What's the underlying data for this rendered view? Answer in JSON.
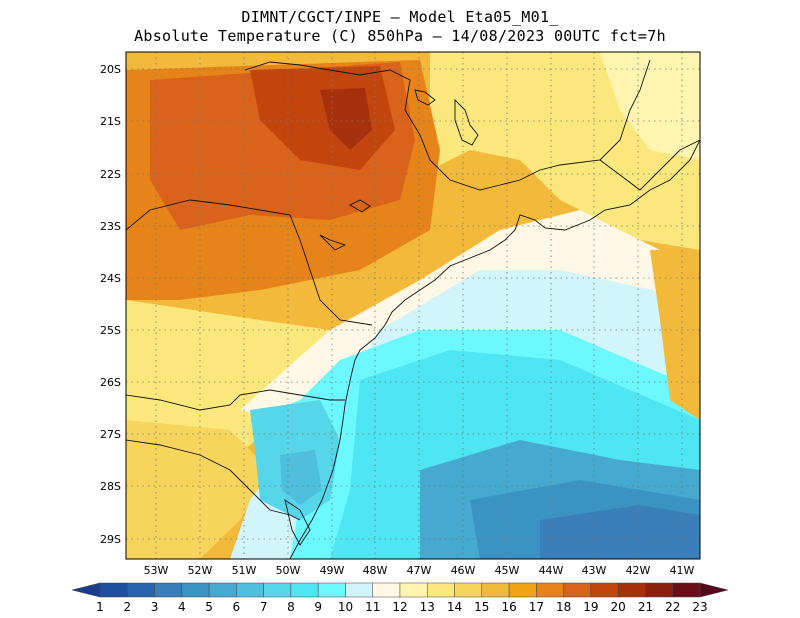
{
  "title": {
    "line1": "DIMNT/CGCT/INPE –  Model Eta05_M01_",
    "line2": "Absolute Temperature (C) 850hPa –  14/08/2023 00UTC fct=7h"
  },
  "map": {
    "lat_labels": [
      "20S",
      "21S",
      "22S",
      "23S",
      "24S",
      "25S",
      "26S",
      "27S",
      "28S",
      "29S"
    ],
    "lon_labels": [
      "53W",
      "52W",
      "51W",
      "50W",
      "49W",
      "48W",
      "47W",
      "46W",
      "45W",
      "44W",
      "43W",
      "42W",
      "41W"
    ],
    "lat_range": [
      -29.4,
      -19.7
    ],
    "lon_range": [
      -53.9,
      -40.6
    ]
  },
  "colorbar": {
    "labels": [
      "1",
      "2",
      "3",
      "4",
      "5",
      "6",
      "7",
      "8",
      "9",
      "10",
      "11",
      "12",
      "13",
      "14",
      "15",
      "16",
      "17",
      "18",
      "19",
      "20",
      "21",
      "22",
      "23"
    ],
    "colors": [
      "#1a3a8c",
      "#1f4f9f",
      "#2a66ad",
      "#3a7fba",
      "#3b93c4",
      "#45a9d0",
      "#4fc0db",
      "#56d6e8",
      "#4de6f2",
      "#6cf8ff",
      "#d2f4fb",
      "#fff8e6",
      "#fff5b0",
      "#fbe87d",
      "#f7d45c",
      "#f3b93a",
      "#f0a313",
      "#e78419",
      "#d9631a",
      "#c2450d",
      "#a6300c",
      "#8a1f10",
      "#6a0f18",
      "#55081a"
    ]
  },
  "temperature_field": {
    "units": "C",
    "level": "850hPa",
    "features": [
      {
        "name": "hot-core-inland",
        "value": 20
      },
      {
        "name": "warm-inland-band",
        "value": 18
      },
      {
        "name": "interior-plateau",
        "value": 16
      },
      {
        "name": "south-warm-zone",
        "value": 14
      },
      {
        "name": "coastal-transition",
        "value": 12
      },
      {
        "name": "near-shore-cool",
        "value": 11
      },
      {
        "name": "offshore-cool-core",
        "value": 9
      },
      {
        "name": "southern-ocean-cold",
        "value": 5
      }
    ]
  }
}
